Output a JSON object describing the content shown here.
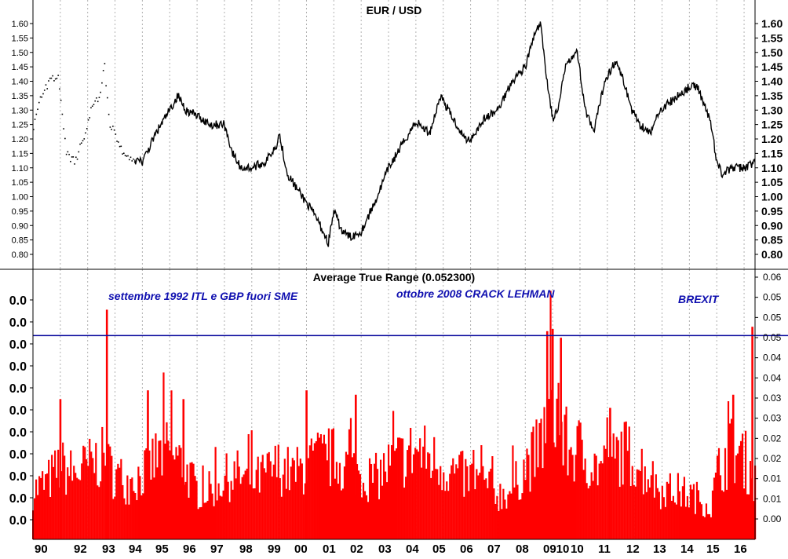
{
  "chart_data": [
    {
      "type": "line",
      "title": "EUR / USD",
      "ylim": [
        0.78,
        1.63
      ],
      "y_ticks": [
        "1.60",
        "1.55",
        "1.50",
        "1.45",
        "1.40",
        "1.35",
        "1.30",
        "1.25",
        "1.20",
        "1.15",
        "1.10",
        "1.05",
        "1.00",
        "0.95",
        "0.90",
        "0.85",
        "0.80"
      ],
      "grid": "vertical dotted at year boundaries",
      "x": [
        1990.0,
        1990.3,
        1990.6,
        1990.9,
        1991.2,
        1991.5,
        1991.8,
        1992.1,
        1992.4,
        1992.6,
        1992.8,
        1993.0,
        1993.3,
        1993.6,
        1994.0,
        1994.5,
        1995.0,
        1995.3,
        1995.6,
        1996.0,
        1996.5,
        1997.0,
        1997.3,
        1997.6,
        1998.0,
        1998.5,
        1998.9,
        1999.0,
        1999.3,
        1999.7,
        2000.0,
        2000.4,
        2000.8,
        2001.0,
        2001.3,
        2001.6,
        2002.0,
        2002.5,
        2003.0,
        2003.5,
        2004.0,
        2004.5,
        2004.9,
        2005.3,
        2005.8,
        2006.0,
        2006.5,
        2007.0,
        2007.5,
        2008.0,
        2008.3,
        2008.55,
        2008.8,
        2009.0,
        2009.2,
        2009.5,
        2009.9,
        2010.2,
        2010.5,
        2010.9,
        2011.0,
        2011.3,
        2011.6,
        2011.9,
        2012.2,
        2012.6,
        2012.9,
        2013.2,
        2013.6,
        2014.0,
        2014.3,
        2014.5,
        2014.8,
        2015.0,
        2015.2,
        2015.6,
        2016.0,
        2016.4
      ],
      "series": [
        {
          "values": [
            1.25,
            1.35,
            1.4,
            1.42,
            1.15,
            1.12,
            1.2,
            1.3,
            1.35,
            1.45,
            1.25,
            1.22,
            1.15,
            1.13,
            1.12,
            1.22,
            1.3,
            1.35,
            1.3,
            1.28,
            1.25,
            1.25,
            1.15,
            1.1,
            1.1,
            1.12,
            1.18,
            1.22,
            1.08,
            1.02,
            0.98,
            0.92,
            0.84,
            0.95,
            0.88,
            0.86,
            0.88,
            0.98,
            1.1,
            1.18,
            1.26,
            1.22,
            1.35,
            1.28,
            1.2,
            1.2,
            1.27,
            1.3,
            1.4,
            1.45,
            1.55,
            1.6,
            1.4,
            1.27,
            1.3,
            1.47,
            1.5,
            1.3,
            1.22,
            1.4,
            1.42,
            1.47,
            1.4,
            1.3,
            1.25,
            1.22,
            1.3,
            1.32,
            1.35,
            1.38,
            1.38,
            1.33,
            1.25,
            1.12,
            1.08,
            1.1,
            1.1,
            1.12
          ]
        }
      ],
      "x_ticks": [
        "90",
        "92",
        "93",
        "94",
        "95",
        "96",
        "97",
        "98",
        "99",
        "00",
        "01",
        "02",
        "03",
        "04",
        "05",
        "06",
        "07",
        "08",
        "0910",
        "10",
        "11",
        "12",
        "13",
        "14",
        "15",
        "16"
      ]
    },
    {
      "type": "bar",
      "title": "Average True Range (0.052300)",
      "ylim": [
        0,
        0.06
      ],
      "y_ticks_right": [
        "0.06",
        "0.05",
        "0.05",
        "0.05",
        "0.04",
        "0.04",
        "0.03",
        "0.03",
        "0.02",
        "0.02",
        "0.01",
        "0.01",
        "0.00"
      ],
      "y_ticks_left": [
        "0.0",
        "0.0",
        "0.0",
        "0.0",
        "0.0",
        "0.0",
        "0.0",
        "0.0",
        "0.0",
        "0.0",
        "0.0"
      ],
      "reference_line": 0.0465,
      "x_range": [
        1990.0,
        2016.4
      ],
      "envelope": {
        "x": [
          1990.0,
          1990.5,
          1991.0,
          1991.5,
          1992.0,
          1992.5,
          1993.0,
          1993.5,
          1994.0,
          1994.5,
          1995.0,
          1995.5,
          1996.0,
          1996.5,
          1997.0,
          1997.5,
          1998.0,
          1998.5,
          1999.0,
          1999.5,
          2000.0,
          2000.5,
          2001.0,
          2001.5,
          2002.0,
          2002.5,
          2003.0,
          2003.5,
          2004.0,
          2004.5,
          2005.0,
          2005.5,
          2006.0,
          2006.5,
          2007.0,
          2007.5,
          2008.0,
          2008.5,
          2008.8,
          2009.0,
          2009.3,
          2009.6,
          2010.0,
          2010.5,
          2011.0,
          2011.5,
          2012.0,
          2012.5,
          2013.0,
          2013.5,
          2014.0,
          2014.4,
          2014.8,
          2015.0,
          2015.5,
          2016.0,
          2016.3,
          2016.4
        ],
        "values": [
          0.012,
          0.014,
          0.018,
          0.016,
          0.018,
          0.02,
          0.016,
          0.014,
          0.016,
          0.02,
          0.022,
          0.018,
          0.012,
          0.012,
          0.015,
          0.016,
          0.014,
          0.016,
          0.018,
          0.016,
          0.018,
          0.02,
          0.02,
          0.018,
          0.016,
          0.015,
          0.018,
          0.02,
          0.022,
          0.02,
          0.018,
          0.016,
          0.015,
          0.014,
          0.011,
          0.012,
          0.018,
          0.022,
          0.03,
          0.034,
          0.026,
          0.022,
          0.022,
          0.018,
          0.018,
          0.022,
          0.02,
          0.016,
          0.012,
          0.012,
          0.011,
          0.01,
          0.008,
          0.016,
          0.022,
          0.02,
          0.016,
          0.014
        ]
      },
      "spikes": [
        {
          "x": 1992.7,
          "y": 0.0524
        },
        {
          "x": 1991.0,
          "y": 0.032
        },
        {
          "x": 1994.2,
          "y": 0.034
        },
        {
          "x": 1995.5,
          "y": 0.032
        },
        {
          "x": 2000.0,
          "y": 0.034
        },
        {
          "x": 2001.8,
          "y": 0.033
        },
        {
          "x": 2008.8,
          "y": 0.0475
        },
        {
          "x": 2009.0,
          "y": 0.048
        },
        {
          "x": 2009.3,
          "y": 0.046
        },
        {
          "x": 2011.1,
          "y": 0.03
        },
        {
          "x": 2015.6,
          "y": 0.033
        },
        {
          "x": 2016.3,
          "y": 0.0485
        }
      ],
      "annotations": [
        {
          "text": "settembre 1992 ITL e GBP fuori SME"
        },
        {
          "text": "ottobre 2008  CRACK LEHMAN"
        },
        {
          "text": "BREXIT"
        }
      ]
    }
  ],
  "colors": {
    "price_line": "#000000",
    "atr_bars": "#ff0000",
    "reference_line": "#1010a0",
    "annotation_text": "#1010b0",
    "grid": "#b0b0b0"
  }
}
